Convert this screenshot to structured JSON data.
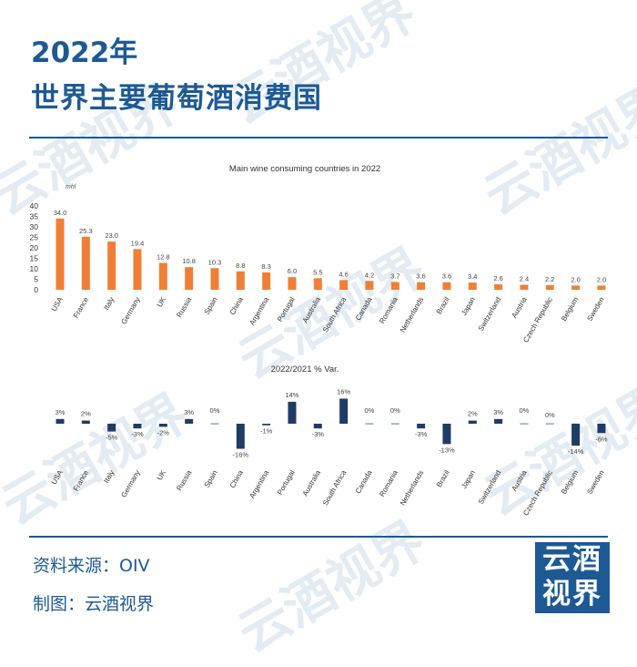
{
  "header": {
    "title_line1": "2022年",
    "title_line2": "世界主要葡萄酒消费国"
  },
  "footer": {
    "source": "资料来源：OIV",
    "credit": "制图：云酒视界",
    "logo_line1": "云酒",
    "logo_line2": "视界"
  },
  "watermark_text": "云酒视界",
  "colors": {
    "brand": "#1d5a94",
    "bar_orange": "#f07f35",
    "bar_navy": "#1f3c66"
  },
  "chart_data": [
    {
      "type": "bar",
      "title": "Main wine consuming countries in 2022",
      "unit": "mhl",
      "categories": [
        "USA",
        "France",
        "Italy",
        "Germany",
        "UK",
        "Russia",
        "Spain",
        "China",
        "Argentina",
        "Portugal",
        "Australia",
        "South Africa",
        "Canada",
        "Romania",
        "Netherlands",
        "Brazil",
        "Japan",
        "Switzerland",
        "Austria",
        "Czech Republic",
        "Belgium",
        "Sweden"
      ],
      "values": [
        34.0,
        25.3,
        23.0,
        19.4,
        12.8,
        10.8,
        10.3,
        8.8,
        8.3,
        6.0,
        5.5,
        4.6,
        4.2,
        3.7,
        3.6,
        3.6,
        3.4,
        2.6,
        2.4,
        2.2,
        2.0,
        2.0
      ],
      "value_labels": [
        "34.0",
        "25.3",
        "23.0",
        "19.4",
        "12.8",
        "10.8",
        "10.3",
        "8.8",
        "8.3",
        "6.0",
        "5.5",
        "4.6",
        "4.2",
        "3.7",
        "3.6",
        "3.6",
        "3.4",
        "2.6",
        "2.4",
        "2.2",
        "2.0",
        "2.0"
      ],
      "yticks": [
        "0",
        "5",
        "10",
        "15",
        "20",
        "25",
        "30",
        "35",
        "40"
      ],
      "ylim": [
        0,
        40
      ],
      "grid": false
    },
    {
      "type": "bar",
      "title": "2022/2021 % Var.",
      "categories": [
        "USA",
        "France",
        "Italy",
        "Germany",
        "UK",
        "Russia",
        "Spain",
        "China",
        "Argentina",
        "Portugal",
        "Australia",
        "South Africa",
        "Canada",
        "Romania",
        "Netherlands",
        "Brazil",
        "Japan",
        "Switzerland",
        "Austria",
        "Czech Republic",
        "Belgium",
        "Sweden"
      ],
      "values": [
        3,
        2,
        -5,
        -3,
        -2,
        3,
        0,
        -16,
        -1,
        14,
        -3,
        16,
        0,
        0,
        -3,
        -13,
        2,
        3,
        0,
        0,
        -14,
        -6
      ],
      "value_labels": [
        "3%",
        "2%",
        "-5%",
        "-3%",
        "-2%",
        "3%",
        "0%",
        "-16%",
        "-1%",
        "14%",
        "-3%",
        "16%",
        "0%",
        "0%",
        "-3%",
        "-13%",
        "2%",
        "3%",
        "0%",
        "0%",
        "-14%",
        "-6%"
      ],
      "grid": false
    }
  ]
}
